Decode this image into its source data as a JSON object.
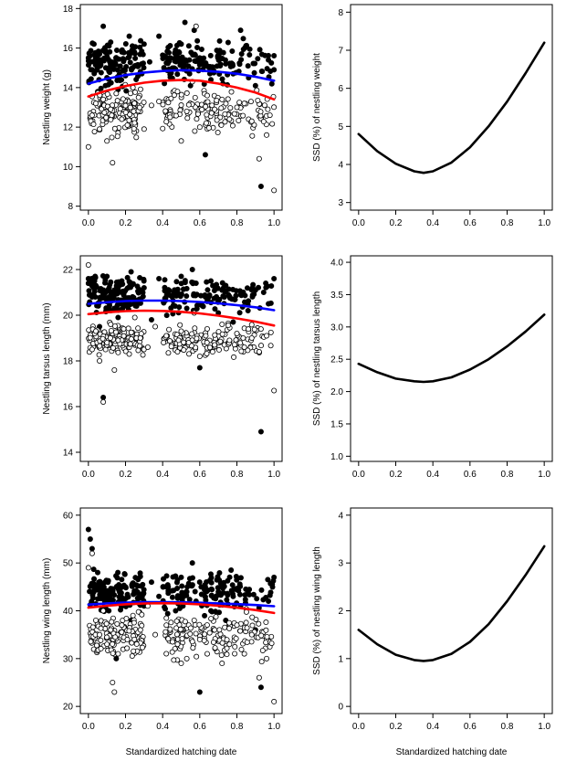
{
  "chart_data": [
    {
      "type": "scatter",
      "panel": "weight-raw",
      "xlabel": "",
      "ylabel": "Nestling weight (g)",
      "xlim": [
        0,
        1
      ],
      "ylim": [
        7.8,
        18.2
      ],
      "xticks": [
        "0.0",
        "0.2",
        "0.4",
        "0.6",
        "0.8",
        "1.0"
      ],
      "yticks": [
        "8",
        "10",
        "12",
        "14",
        "16",
        "18"
      ],
      "points_colors": {
        "filled": "#000000",
        "open": "#000000"
      },
      "series": [
        {
          "style": "filled-points",
          "summary": "males (filled), mostly 12.5–16.5 g",
          "x": [
            0.0,
            0.02,
            0.03,
            0.05,
            0.06,
            0.08,
            0.1,
            0.12,
            0.14,
            0.16,
            0.18,
            0.2,
            0.22,
            0.25,
            0.28,
            0.3,
            0.33,
            0.38,
            0.43,
            0.47,
            0.5,
            0.52,
            0.55,
            0.57,
            0.6,
            0.63,
            0.66,
            0.7,
            0.74,
            0.78,
            0.82,
            0.86,
            0.9,
            0.93,
            0.97,
            1.0
          ],
          "y": [
            15.5,
            14.9,
            16.2,
            13.8,
            15.7,
            17.1,
            14.5,
            16.3,
            15.2,
            13.9,
            15.8,
            14.6,
            16.6,
            15.1,
            14.8,
            16.2,
            15.3,
            16.6,
            14.9,
            15.7,
            16.2,
            17.3,
            14.1,
            16.9,
            15.5,
            10.6,
            14.4,
            15.8,
            15.2,
            14.7,
            16.9,
            15.1,
            14.1,
            9.0,
            15.4,
            14.9
          ]
        },
        {
          "style": "open-points",
          "summary": "females (open), mostly 12–15.5 g",
          "x": [
            0.0,
            0.02,
            0.04,
            0.06,
            0.08,
            0.1,
            0.12,
            0.13,
            0.15,
            0.18,
            0.21,
            0.24,
            0.27,
            0.3,
            0.34,
            0.38,
            0.44,
            0.48,
            0.5,
            0.53,
            0.56,
            0.58,
            0.6,
            0.64,
            0.68,
            0.72,
            0.76,
            0.8,
            0.84,
            0.88,
            0.92,
            0.96,
            1.0
          ],
          "y": [
            11.0,
            12.6,
            13.2,
            11.9,
            13.4,
            11.3,
            12.9,
            10.2,
            13.7,
            12.4,
            12.1,
            14.0,
            13.5,
            11.9,
            13.1,
            13.3,
            12.5,
            13.8,
            11.3,
            12.8,
            14.3,
            17.1,
            12.0,
            13.6,
            12.9,
            13.4,
            12.4,
            13.0,
            13.2,
            12.3,
            10.4,
            11.6,
            8.8
          ]
        },
        {
          "name": "",
          "style": "line",
          "color": "#0000ff",
          "x": [
            0.0,
            0.1,
            0.2,
            0.3,
            0.4,
            0.5,
            0.6,
            0.7,
            0.8,
            0.9,
            1.0
          ],
          "y": [
            14.2,
            14.45,
            14.63,
            14.76,
            14.84,
            14.88,
            14.86,
            14.8,
            14.7,
            14.55,
            14.35
          ]
        },
        {
          "name": "",
          "style": "line",
          "color": "#ff0000",
          "x": [
            0.0,
            0.1,
            0.2,
            0.3,
            0.4,
            0.5,
            0.6,
            0.7,
            0.8,
            0.9,
            1.0
          ],
          "y": [
            13.55,
            13.85,
            14.08,
            14.25,
            14.35,
            14.38,
            14.35,
            14.2,
            14.0,
            13.75,
            13.4
          ]
        }
      ]
    },
    {
      "type": "line",
      "panel": "weight-ssd",
      "xlabel": "",
      "ylabel": "SSD (%) of nestling weight",
      "xlim": [
        0,
        1
      ],
      "ylim": [
        2.8,
        8.2
      ],
      "xticks": [
        "0.0",
        "0.2",
        "0.4",
        "0.6",
        "0.8",
        "1.0"
      ],
      "yticks": [
        "3",
        "4",
        "5",
        "6",
        "7",
        "8"
      ],
      "series": [
        {
          "name": "",
          "color": "#000000",
          "x": [
            0.0,
            0.1,
            0.2,
            0.3,
            0.35,
            0.4,
            0.5,
            0.6,
            0.7,
            0.8,
            0.9,
            1.0
          ],
          "y": [
            4.8,
            4.35,
            4.02,
            3.82,
            3.78,
            3.82,
            4.05,
            4.45,
            5.0,
            5.65,
            6.4,
            7.2
          ]
        }
      ]
    },
    {
      "type": "scatter",
      "panel": "tarsus-raw",
      "xlabel": "",
      "ylabel": "Nestling tarsus length (mm)",
      "xlim": [
        0,
        1
      ],
      "ylim": [
        13.6,
        22.6
      ],
      "xticks": [
        "0.0",
        "0.2",
        "0.4",
        "0.6",
        "0.8",
        "1.0"
      ],
      "yticks": [
        "14",
        "16",
        "18",
        "20",
        "22"
      ],
      "series": [
        {
          "style": "filled-points",
          "summary": "males (filled), mostly 19.5–21.8 mm",
          "x": [
            0.0,
            0.02,
            0.04,
            0.06,
            0.08,
            0.1,
            0.12,
            0.14,
            0.16,
            0.18,
            0.2,
            0.23,
            0.26,
            0.3,
            0.34,
            0.38,
            0.43,
            0.47,
            0.5,
            0.53,
            0.56,
            0.58,
            0.6,
            0.63,
            0.66,
            0.7,
            0.74,
            0.78,
            0.82,
            0.86,
            0.9,
            0.93,
            0.97,
            1.0
          ],
          "y": [
            21.6,
            20.8,
            21.3,
            19.5,
            16.4,
            21.7,
            20.2,
            21.1,
            19.9,
            21.5,
            20.6,
            21.9,
            20.4,
            21.2,
            19.8,
            21.6,
            20.9,
            21.1,
            21.7,
            20.3,
            22.0,
            21.4,
            17.7,
            20.8,
            21.5,
            20.1,
            21.3,
            19.7,
            20.9,
            20.2,
            21.1,
            14.9,
            20.5,
            21.6
          ]
        },
        {
          "style": "open-points",
          "summary": "females (open), mostly 18.5–21 mm",
          "x": [
            0.0,
            0.02,
            0.04,
            0.06,
            0.08,
            0.1,
            0.12,
            0.14,
            0.16,
            0.19,
            0.22,
            0.25,
            0.28,
            0.32,
            0.36,
            0.42,
            0.48,
            0.5,
            0.54,
            0.57,
            0.6,
            0.64,
            0.68,
            0.72,
            0.76,
            0.8,
            0.84,
            0.88,
            0.92,
            0.96,
            1.0
          ],
          "y": [
            22.2,
            18.5,
            19.3,
            18.0,
            16.2,
            18.8,
            19.6,
            17.6,
            18.9,
            19.4,
            18.3,
            19.9,
            19.0,
            18.6,
            19.5,
            19.1,
            18.4,
            19.3,
            18.8,
            20.1,
            18.2,
            19.4,
            18.7,
            19.6,
            18.9,
            19.2,
            18.6,
            19.0,
            18.4,
            19.1,
            16.7
          ]
        },
        {
          "name": "",
          "style": "line",
          "color": "#0000ff",
          "x": [
            0.0,
            0.1,
            0.2,
            0.3,
            0.4,
            0.5,
            0.6,
            0.7,
            0.8,
            0.9,
            1.0
          ],
          "y": [
            20.5,
            20.57,
            20.62,
            20.64,
            20.64,
            20.62,
            20.58,
            20.52,
            20.44,
            20.35,
            20.22
          ]
        },
        {
          "name": "",
          "style": "line",
          "color": "#ff0000",
          "x": [
            0.0,
            0.1,
            0.2,
            0.3,
            0.4,
            0.5,
            0.6,
            0.7,
            0.8,
            0.9,
            1.0
          ],
          "y": [
            20.05,
            20.13,
            20.18,
            20.2,
            20.19,
            20.15,
            20.08,
            19.98,
            19.86,
            19.72,
            19.55
          ]
        }
      ]
    },
    {
      "type": "line",
      "panel": "tarsus-ssd",
      "xlabel": "",
      "ylabel": "SSD (%) of nestling tarsus length",
      "xlim": [
        0,
        1
      ],
      "ylim": [
        0.92,
        4.1
      ],
      "xticks": [
        "0.0",
        "0.2",
        "0.4",
        "0.6",
        "0.8",
        "1.0"
      ],
      "yticks": [
        "1.0",
        "1.5",
        "2.0",
        "2.5",
        "3.0",
        "3.5",
        "4.0"
      ],
      "series": [
        {
          "name": "",
          "color": "#000000",
          "x": [
            0.0,
            0.1,
            0.2,
            0.3,
            0.35,
            0.4,
            0.5,
            0.6,
            0.7,
            0.8,
            0.9,
            1.0
          ],
          "y": [
            2.43,
            2.3,
            2.2,
            2.16,
            2.15,
            2.16,
            2.22,
            2.34,
            2.5,
            2.7,
            2.93,
            3.19
          ]
        }
      ]
    },
    {
      "type": "scatter",
      "panel": "wing-raw",
      "xlabel": "Standardized hatching date",
      "ylabel": "Nestling wing length (mm)",
      "xlim": [
        0,
        1
      ],
      "ylim": [
        18.5,
        61.5
      ],
      "xticks": [
        "0.0",
        "0.2",
        "0.4",
        "0.6",
        "0.8",
        "1.0"
      ],
      "yticks": [
        "20",
        "30",
        "40",
        "50",
        "60"
      ],
      "series": [
        {
          "style": "filled-points",
          "summary": "males (filled), mostly 36–47 mm",
          "x": [
            0.0,
            0.01,
            0.02,
            0.03,
            0.05,
            0.07,
            0.09,
            0.11,
            0.13,
            0.15,
            0.17,
            0.2,
            0.23,
            0.26,
            0.3,
            0.34,
            0.38,
            0.43,
            0.47,
            0.5,
            0.53,
            0.56,
            0.58,
            0.6,
            0.63,
            0.66,
            0.7,
            0.74,
            0.78,
            0.82,
            0.86,
            0.9,
            0.93,
            0.97,
            1.0
          ],
          "y": [
            57,
            55,
            53,
            45,
            48,
            43,
            46,
            40,
            44,
            30,
            42,
            45,
            38,
            44,
            41,
            46,
            43,
            45,
            40,
            47,
            44,
            50,
            42,
            23,
            45,
            40,
            44,
            38,
            43,
            41,
            44,
            36,
            24,
            42,
            47
          ]
        },
        {
          "style": "open-points",
          "summary": "females (open), mostly 33–45 mm",
          "x": [
            0.0,
            0.02,
            0.04,
            0.06,
            0.08,
            0.1,
            0.12,
            0.13,
            0.14,
            0.16,
            0.18,
            0.21,
            0.24,
            0.28,
            0.32,
            0.36,
            0.42,
            0.48,
            0.5,
            0.53,
            0.57,
            0.6,
            0.64,
            0.68,
            0.72,
            0.76,
            0.8,
            0.84,
            0.88,
            0.92,
            0.96,
            1.0
          ],
          "y": [
            49,
            52,
            38,
            35,
            40,
            33,
            36,
            25,
            23,
            31,
            37,
            34,
            39,
            36,
            41,
            35,
            37,
            33,
            29,
            30,
            38,
            34,
            31,
            36,
            29,
            33,
            37,
            31,
            35,
            26,
            30,
            21
          ]
        },
        {
          "name": "",
          "style": "line",
          "color": "#0000ff",
          "x": [
            0.0,
            0.1,
            0.2,
            0.3,
            0.4,
            0.5,
            0.6,
            0.7,
            0.8,
            0.9,
            1.0
          ],
          "y": [
            41.3,
            41.55,
            41.72,
            41.8,
            41.82,
            41.78,
            41.68,
            41.55,
            41.4,
            41.2,
            40.95
          ]
        },
        {
          "name": "",
          "style": "line",
          "color": "#ff0000",
          "x": [
            0.0,
            0.1,
            0.2,
            0.3,
            0.4,
            0.5,
            0.6,
            0.7,
            0.8,
            0.9,
            1.0
          ],
          "y": [
            40.65,
            41.05,
            41.35,
            41.52,
            41.58,
            41.52,
            41.35,
            41.05,
            40.65,
            40.15,
            39.55
          ]
        }
      ]
    },
    {
      "type": "line",
      "panel": "wing-ssd",
      "xlabel": "Standardized hatching date",
      "ylabel": "SSD (%) of nestling wing length",
      "xlim": [
        0,
        1
      ],
      "ylim": [
        -0.15,
        4.15
      ],
      "xticks": [
        "0.0",
        "0.2",
        "0.4",
        "0.6",
        "0.8",
        "1.0"
      ],
      "yticks": [
        "0",
        "1",
        "2",
        "3",
        "4"
      ],
      "series": [
        {
          "name": "",
          "color": "#000000",
          "x": [
            0.0,
            0.1,
            0.2,
            0.3,
            0.35,
            0.4,
            0.5,
            0.6,
            0.7,
            0.8,
            0.9,
            1.0
          ],
          "y": [
            1.6,
            1.3,
            1.08,
            0.97,
            0.95,
            0.97,
            1.1,
            1.35,
            1.72,
            2.2,
            2.75,
            3.35
          ]
        }
      ]
    }
  ]
}
